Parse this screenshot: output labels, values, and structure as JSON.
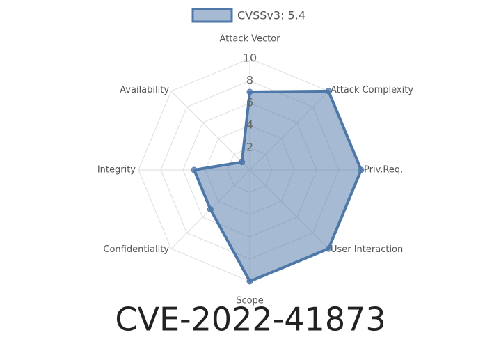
{
  "chart_data": {
    "type": "radar",
    "title": "CVE-2022-41873",
    "categories": [
      "Attack Vector",
      "Attack Complexity",
      "Priv.Req.",
      "User Interaction",
      "Scope",
      "Confidentiality",
      "Integrity",
      "Availability"
    ],
    "series": [
      {
        "name": "CVSSv3: 5.4",
        "color": "#4e78a8",
        "values": [
          7,
          10,
          10,
          10,
          10,
          5,
          5,
          1
        ]
      }
    ],
    "rlim": [
      0,
      10
    ],
    "rticks": [
      2,
      4,
      6,
      8,
      10
    ],
    "grid": true,
    "legend": "top"
  }
}
